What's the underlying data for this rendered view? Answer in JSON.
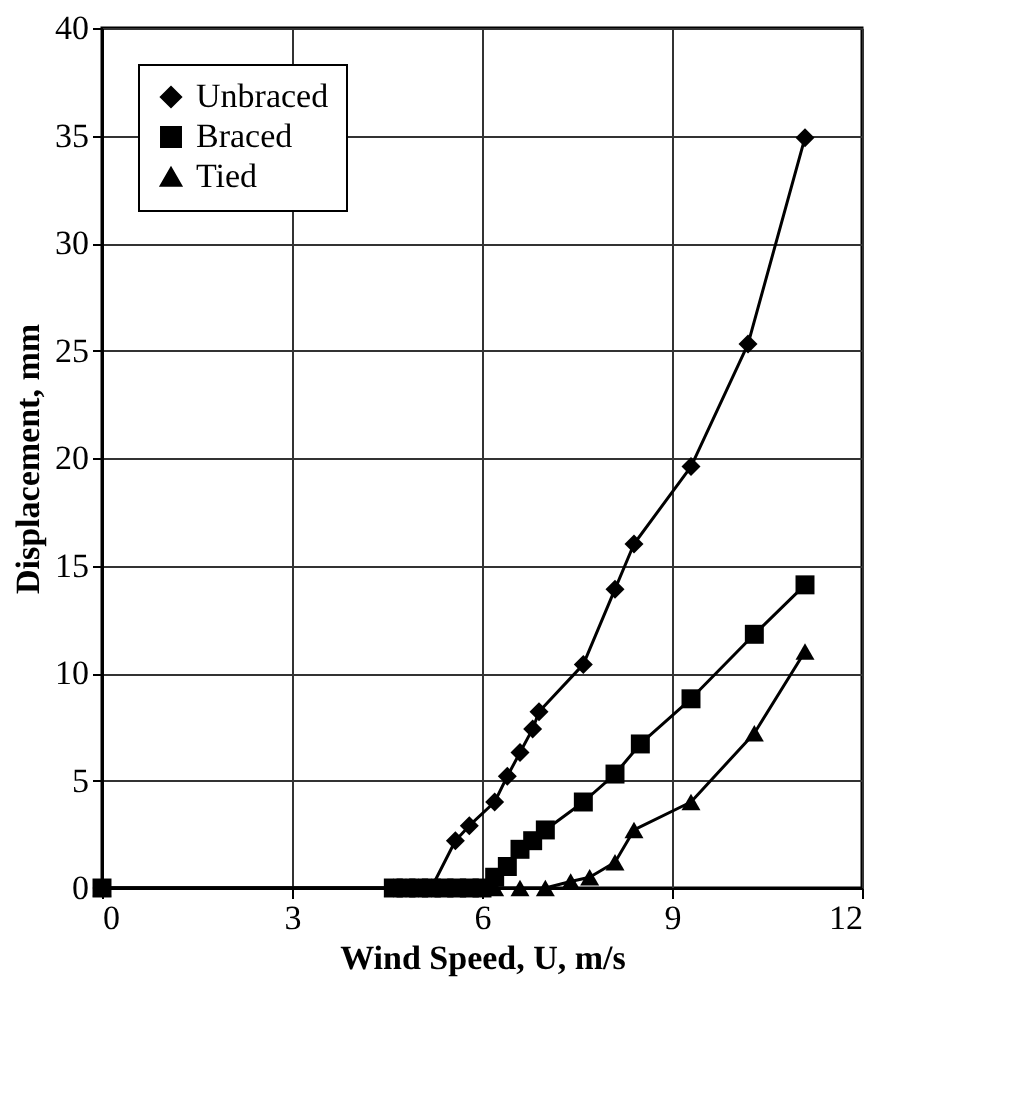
{
  "chart_data": {
    "type": "line",
    "xlabel": "Wind Speed, U, m/s",
    "ylabel": "Displacement, mm",
    "xlim": [
      0,
      12
    ],
    "ylim": [
      0,
      40
    ],
    "xticks": [
      0,
      3,
      6,
      9,
      12
    ],
    "yticks": [
      0,
      5,
      10,
      15,
      20,
      25,
      30,
      35,
      40
    ],
    "grid": true,
    "legend": "top left",
    "series": [
      {
        "name": "Unbraced",
        "color": "#000000",
        "marker": "diamond",
        "x": [
          0,
          4.6,
          4.8,
          5.0,
          5.2,
          5.58,
          5.8,
          6.2,
          6.4,
          6.6,
          6.8,
          6.9,
          7.6,
          8.1,
          8.4,
          9.3,
          10.2,
          11.1
        ],
        "values": [
          0,
          0,
          0,
          0,
          0,
          2.2,
          2.9,
          4.0,
          5.2,
          6.3,
          7.4,
          8.2,
          10.4,
          13.9,
          16.0,
          19.6,
          25.3,
          34.9
        ]
      },
      {
        "name": "Braced",
        "color": "#000000",
        "marker": "square",
        "x": [
          0,
          4.6,
          4.8,
          5.0,
          5.2,
          5.4,
          5.6,
          5.8,
          6.0,
          6.2,
          6.4,
          6.6,
          6.8,
          7.0,
          7.6,
          8.1,
          8.5,
          9.3,
          10.3,
          11.1
        ],
        "values": [
          0,
          0,
          0,
          0,
          0,
          0,
          0,
          0,
          0,
          0.5,
          1.0,
          1.8,
          2.2,
          2.7,
          4.0,
          5.3,
          6.7,
          8.8,
          11.8,
          14.1
        ]
      },
      {
        "name": "Tied",
        "color": "#000000",
        "marker": "triangle",
        "x": [
          0,
          4.6,
          5.0,
          5.4,
          5.8,
          6.2,
          6.6,
          7.0,
          7.4,
          7.7,
          8.1,
          8.4,
          9.3,
          10.3,
          11.1
        ],
        "values": [
          0,
          0,
          0,
          0,
          0,
          0,
          0,
          0,
          0.3,
          0.5,
          1.2,
          2.7,
          4.0,
          7.2,
          11.0
        ]
      }
    ]
  }
}
